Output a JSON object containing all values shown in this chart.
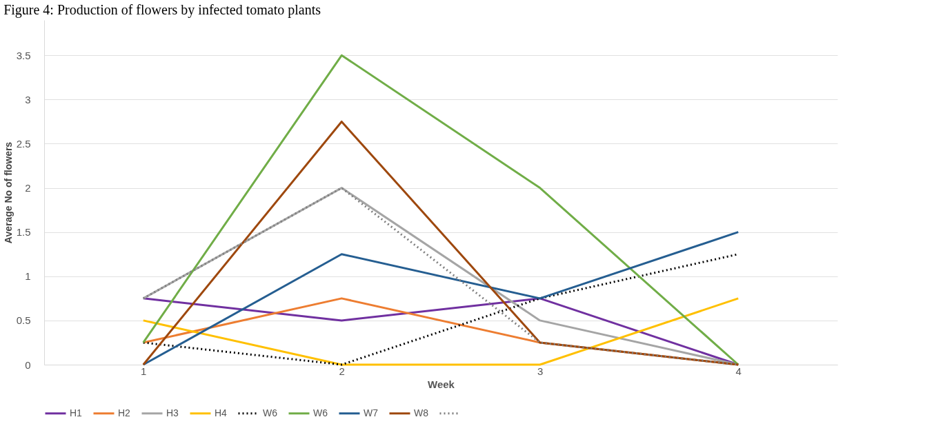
{
  "chart_data": {
    "type": "line",
    "title": "Figure 4: Production of flowers by infected tomato plants",
    "xlabel": "Week",
    "ylabel": "Average No of flowers",
    "categories": [
      "1",
      "2",
      "3",
      "4"
    ],
    "ylim": [
      0,
      3.9
    ],
    "yticks": [
      0,
      0.5,
      1,
      1.5,
      2,
      2.5,
      3,
      3.5
    ],
    "grid": "y",
    "legend": "bottom",
    "marker": "none",
    "series": [
      {
        "name": "H1",
        "color": "#7030a0",
        "values": [
          0.75,
          0.5,
          0.75,
          0
        ],
        "line_style": "solid"
      },
      {
        "name": "H2",
        "color": "#ed7d31",
        "values": [
          0.25,
          0.75,
          0.25,
          0
        ],
        "line_style": "solid"
      },
      {
        "name": "H3",
        "color": "#a5a5a5",
        "values": [
          0.75,
          2,
          0.5,
          0
        ],
        "line_style": "solid"
      },
      {
        "name": "H4",
        "color": "#ffc000",
        "values": [
          0.5,
          0,
          0,
          0.75
        ],
        "line_style": "solid"
      },
      {
        "name": "W6",
        "color": "#000000",
        "values": [
          0.25,
          0,
          0.75,
          1.25
        ],
        "line_style": "dotted"
      },
      {
        "name": "W6",
        "color": "#70ad47",
        "values": [
          0.25,
          3.5,
          2,
          0
        ],
        "line_style": "solid"
      },
      {
        "name": "W7",
        "color": "#255e91",
        "values": [
          0,
          1.25,
          0.75,
          1.5
        ],
        "line_style": "solid"
      },
      {
        "name": "W8",
        "color": "#9e480e",
        "values": [
          0,
          2.75,
          0.25,
          0
        ],
        "line_style": "solid"
      },
      {
        "color": "#7f7f7f",
        "values": [
          0.75,
          2,
          0.25,
          0
        ],
        "line_style": "dotted"
      }
    ]
  }
}
